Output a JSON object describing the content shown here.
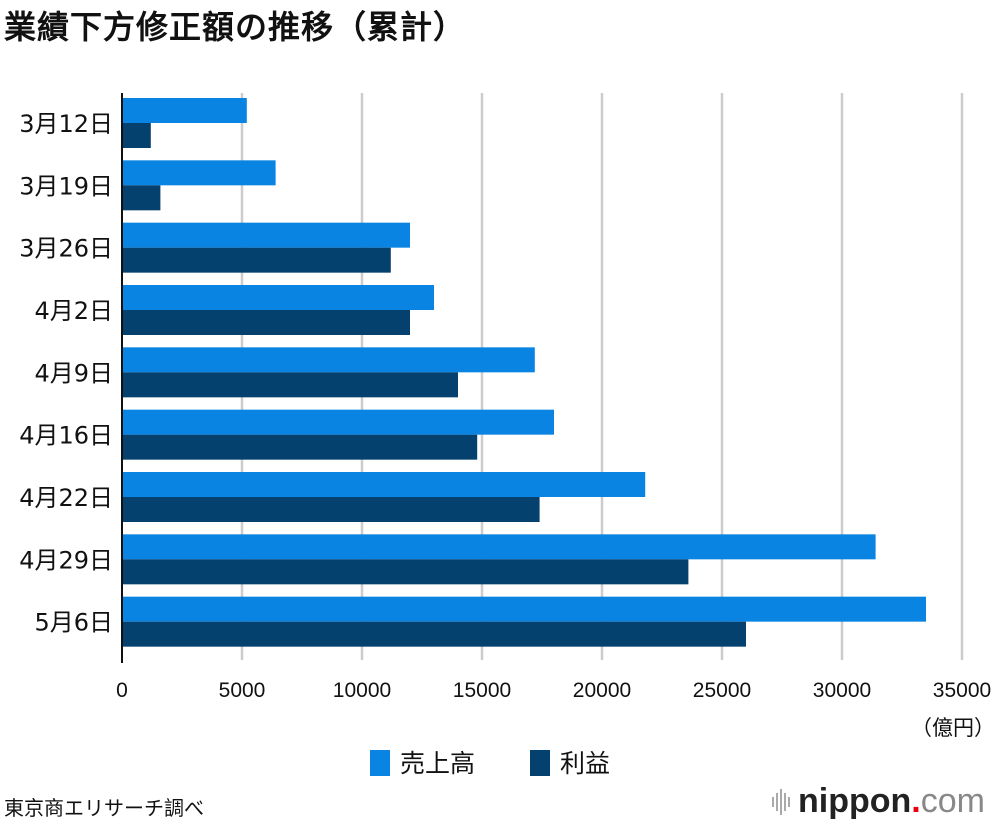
{
  "title": "業績下方修正額の推移（累計）",
  "source": "東京商エリサーチ調べ",
  "logo": {
    "name": "nippon",
    "dot": ".",
    "tld": "com",
    "icon": "sound-bars-icon"
  },
  "colors": {
    "sales": "#0a84e2",
    "profit": "#04416f",
    "grid": "#cccccc",
    "axis": "#111111"
  },
  "chart_data": {
    "type": "bar",
    "orientation": "horizontal",
    "title": "業績下方修正額の推移（累計）",
    "xlabel": "（億円）",
    "ylabel": "",
    "categories": [
      "3月12日",
      "3月19日",
      "3月26日",
      "4月2日",
      "4月9日",
      "4月16日",
      "4月22日",
      "4月29日",
      "5月6日"
    ],
    "series": [
      {
        "name": "売上高",
        "color": "#0a84e2",
        "values": [
          5200,
          6400,
          12000,
          13000,
          17200,
          18000,
          21800,
          31400,
          33500
        ]
      },
      {
        "name": "利益",
        "color": "#04416f",
        "values": [
          1200,
          1600,
          11200,
          12000,
          14000,
          14800,
          17400,
          23600,
          26000
        ]
      }
    ],
    "xlim": [
      0,
      35000
    ],
    "xticks": [
      "0",
      "5000",
      "10000",
      "15000",
      "20000",
      "25000",
      "30000",
      "35000"
    ],
    "xtick_values": [
      0,
      5000,
      10000,
      15000,
      20000,
      25000,
      30000,
      35000
    ],
    "grid": true,
    "legend": "bottom-center"
  }
}
